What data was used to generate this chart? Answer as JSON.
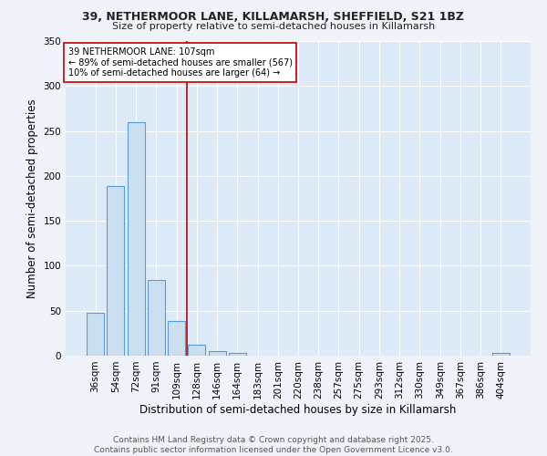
{
  "title_line1": "39, NETHERMOOR LANE, KILLAMARSH, SHEFFIELD, S21 1BZ",
  "title_line2": "Size of property relative to semi-detached houses in Killamarsh",
  "xlabel": "Distribution of semi-detached houses by size in Killamarsh",
  "ylabel": "Number of semi-detached properties",
  "bin_labels": [
    "36sqm",
    "54sqm",
    "72sqm",
    "91sqm",
    "109sqm",
    "128sqm",
    "146sqm",
    "164sqm",
    "183sqm",
    "201sqm",
    "220sqm",
    "238sqm",
    "257sqm",
    "275sqm",
    "293sqm",
    "312sqm",
    "330sqm",
    "349sqm",
    "367sqm",
    "386sqm",
    "404sqm"
  ],
  "bin_values": [
    48,
    189,
    260,
    84,
    39,
    12,
    5,
    3,
    0,
    0,
    0,
    0,
    0,
    0,
    0,
    0,
    0,
    0,
    0,
    0,
    3
  ],
  "bar_color": "#ccdff0",
  "bar_edge_color": "#5b9bd5",
  "vline_color": "#c00000",
  "vline_pos": 4.5,
  "annotation_text": "39 NETHERMOOR LANE: 107sqm\n← 89% of semi-detached houses are smaller (567)\n10% of semi-detached houses are larger (64) →",
  "annotation_box_facecolor": "#ffffff",
  "annotation_box_edgecolor": "#c00000",
  "ylim": [
    0,
    350
  ],
  "yticks": [
    0,
    50,
    100,
    150,
    200,
    250,
    300,
    350
  ],
  "footer_line1": "Contains HM Land Registry data © Crown copyright and database right 2025.",
  "footer_line2": "Contains public sector information licensed under the Open Government Licence v3.0.",
  "fig_facecolor": "#f0f4fa",
  "plot_facecolor": "#ddeaf7",
  "grid_color": "#ffffff",
  "title1_fontsize": 9,
  "title2_fontsize": 8,
  "xlabel_fontsize": 8.5,
  "ylabel_fontsize": 8.5,
  "tick_fontsize": 7.5,
  "annotation_fontsize": 7,
  "footer_fontsize": 6.5
}
